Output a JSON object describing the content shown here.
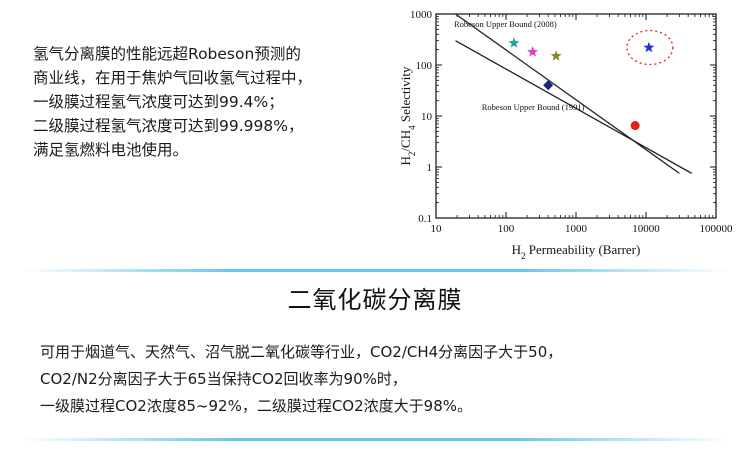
{
  "intro": {
    "lines": [
      "氢气分离膜的性能远超Robeson预测的",
      "商业线，在用于焦炉气回收氢气过程中，",
      "一级膜过程氢气浓度可达到99.4%；",
      "二级膜过程氢气浓度可达到99.998%，",
      "满足氢燃料电池使用。"
    ]
  },
  "chart_data": {
    "type": "scatter",
    "title": "",
    "xlabel_main": "H",
    "xlabel_sub": "2",
    "xlabel_rest": " Permeability (Barrer)",
    "ylabel_main": "H",
    "ylabel_sub1": "2",
    "ylabel_mid": "/CH",
    "ylabel_sub2": "4",
    "ylabel_rest": " Selectivity",
    "x_scale": "log",
    "y_scale": "log",
    "xlim": [
      10,
      100000
    ],
    "ylim": [
      0.1,
      1000
    ],
    "x_ticks": [
      10,
      100,
      1000,
      10000,
      100000
    ],
    "x_tick_labels": [
      "10",
      "100",
      "1000",
      "10000",
      "100000"
    ],
    "y_ticks": [
      0.1,
      1,
      10,
      100,
      1000
    ],
    "y_tick_labels": [
      "0.1",
      "1",
      "10",
      "100",
      "1000"
    ],
    "grid": false,
    "upper_bounds": [
      {
        "name": "Robeson Upper Bound (2008)",
        "line": [
          [
            19,
            1000
          ],
          [
            30000,
            0.75
          ]
        ]
      },
      {
        "name": "Robeson Upper Bound (1991)",
        "line": [
          [
            19,
            300
          ],
          [
            45000,
            0.75
          ]
        ]
      }
    ],
    "points": [
      {
        "x": 130,
        "y": 270,
        "marker": "star",
        "color": "#2a9d9e"
      },
      {
        "x": 240,
        "y": 180,
        "marker": "star",
        "color": "#e040c8"
      },
      {
        "x": 520,
        "y": 150,
        "marker": "star",
        "color": "#8a8a2a"
      },
      {
        "x": 11000,
        "y": 220,
        "marker": "star",
        "color": "#2233cc"
      },
      {
        "x": 400,
        "y": 40,
        "marker": "diamond",
        "color": "#1a237e"
      },
      {
        "x": 7000,
        "y": 6.5,
        "marker": "circle",
        "color": "#e8201a"
      }
    ],
    "highlight": {
      "x": 11000,
      "y": 220,
      "color": "#e8201a"
    }
  },
  "section": {
    "title": "二氧化碳分离膜",
    "lines": [
      "可用于烟道气、天然气、沼气脱二氧化碳等行业，CO2/CH4分离因子大于50，",
      "CO2/N2分离因子大于65当保持CO2回收率为90%时，",
      "一级膜过程CO2浓度85~92%，二级膜过程CO2浓度大于98%。"
    ]
  },
  "colors": {
    "divider": "#38b3e6"
  }
}
